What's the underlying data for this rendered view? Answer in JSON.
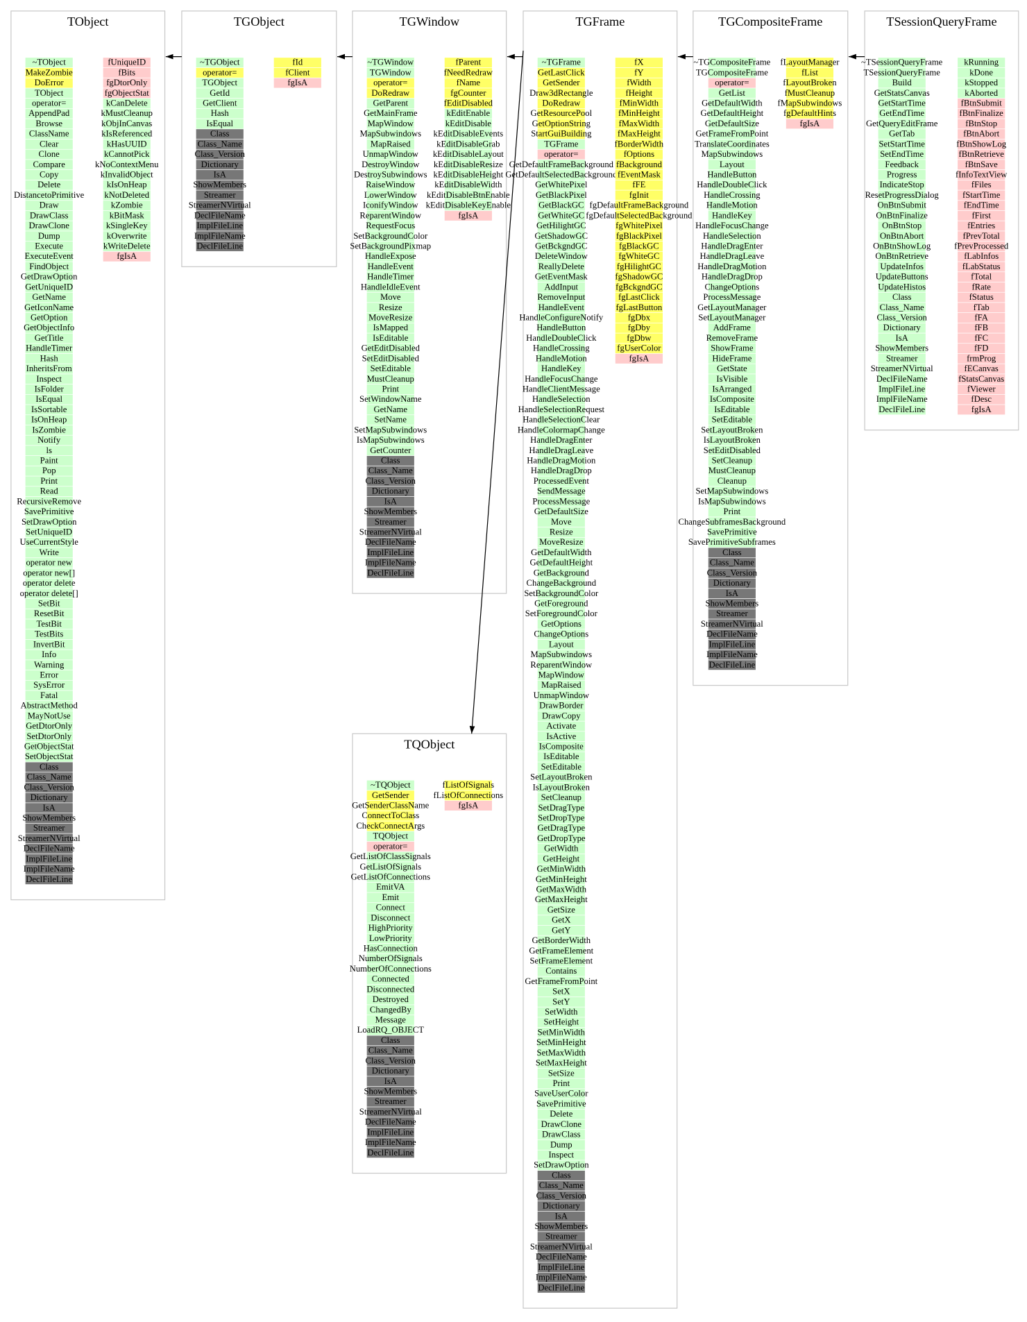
{
  "nodes": [
    {
      "title": "TObject",
      "methods": [
        {
          "color": "#ccffcc",
          "items": [
            "~TObject"
          ]
        },
        {
          "color": "#ffff66",
          "items": [
            "MakeZombie",
            "DoError"
          ]
        },
        {
          "color": "#ccffcc",
          "items": [
            "TObject",
            "operator=",
            "AppendPad",
            "Browse",
            "ClassName",
            "Clear",
            "Clone",
            "Compare",
            "Copy",
            "Delete",
            "DistancetoPrimitive",
            "Draw",
            "DrawClass",
            "DrawClone",
            "Dump",
            "Execute",
            "ExecuteEvent",
            "FindObject",
            "GetDrawOption",
            "GetUniqueID",
            "GetName",
            "GetIconName",
            "GetOption",
            "GetObjectInfo",
            "GetTitle",
            "HandleTimer",
            "Hash",
            "InheritsFrom",
            "Inspect",
            "IsFolder",
            "IsEqual",
            "IsSortable",
            "IsOnHeap",
            "IsZombie",
            "Notify",
            "ls",
            "Paint",
            "Pop",
            "Print",
            "Read",
            "RecursiveRemove",
            "SavePrimitive",
            "SetDrawOption",
            "SetUniqueID",
            "UseCurrentStyle",
            "Write",
            "operator new",
            "operator new[]",
            "operator delete",
            "operator delete[]",
            "SetBit",
            "ResetBit",
            "TestBit",
            "TestBits",
            "InvertBit",
            "Info",
            "Warning",
            "Error",
            "SysError",
            "Fatal",
            "AbstractMethod",
            "MayNotUse",
            "GetDtorOnly",
            "SetDtorOnly",
            "GetObjectStat",
            "SetObjectStat"
          ]
        },
        {
          "color": "#777777",
          "items": [
            "Class",
            "Class_Name",
            "Class_Version",
            "Dictionary",
            "IsA",
            "ShowMembers",
            "Streamer",
            "StreamerNVirtual",
            "DeclFileName",
            "ImplFileLine",
            "ImplFileName",
            "DeclFileLine"
          ]
        }
      ],
      "members": [
        {
          "color": "#ffcccc",
          "items": [
            "fUniqueID",
            "fBits",
            "fgDtorOnly",
            "fgObjectStat"
          ]
        },
        {
          "color": "#ccffcc",
          "items": [
            "kCanDelete",
            "kMustCleanup",
            "kObjInCanvas",
            "kIsReferenced",
            "kHasUUID",
            "kCannotPick",
            "kNoContextMenu",
            "kInvalidObject",
            "kIsOnHeap",
            "kNotDeleted",
            "kZombie",
            "kBitMask",
            "kSingleKey",
            "kOverwrite",
            "kWriteDelete"
          ]
        },
        {
          "color": "#ffcccc",
          "items": [
            "fgIsA"
          ]
        }
      ]
    },
    {
      "title": "TGObject",
      "methods": [
        {
          "color": "#ccffcc",
          "items": [
            "~TGObject"
          ]
        },
        {
          "color": "#ffff66",
          "items": [
            "operator="
          ]
        },
        {
          "color": "#ccffcc",
          "items": [
            "TGObject",
            "GetId",
            "GetClient",
            "Hash",
            "IsEqual"
          ]
        },
        {
          "color": "#777777",
          "items": [
            "Class",
            "Class_Name",
            "Class_Version",
            "Dictionary",
            "IsA",
            "ShowMembers",
            "Streamer",
            "StreamerNVirtual",
            "DeclFileName",
            "ImplFileLine",
            "ImplFileName",
            "DeclFileLine"
          ]
        }
      ],
      "members": [
        {
          "color": "#ffff66",
          "items": [
            "fId",
            "fClient"
          ]
        },
        {
          "color": "#ffcccc",
          "items": [
            "fgIsA"
          ]
        }
      ]
    },
    {
      "title": "TGWindow",
      "methods": [
        {
          "color": "#ccffcc",
          "items": [
            "~TGWindow",
            "TGWindow"
          ]
        },
        {
          "color": "#ffff66",
          "items": [
            "operator=",
            "DoRedraw"
          ]
        },
        {
          "color": "#ccffcc",
          "items": [
            "GetParent",
            "GetMainFrame",
            "MapWindow",
            "MapSubwindows",
            "MapRaised",
            "UnmapWindow",
            "DestroyWindow",
            "DestroySubwindows",
            "RaiseWindow",
            "LowerWindow",
            "IconifyWindow",
            "ReparentWindow",
            "RequestFocus",
            "SetBackgroundColor",
            "SetBackgroundPixmap",
            "HandleExpose",
            "HandleEvent",
            "HandleTimer",
            "HandleIdleEvent",
            "Move",
            "Resize",
            "MoveResize",
            "IsMapped",
            "IsEditable",
            "GetEditDisabled",
            "SetEditDisabled",
            "SetEditable",
            "MustCleanup",
            "Print",
            "SetWindowName",
            "GetName",
            "SetName",
            "SetMapSubwindows",
            "IsMapSubwindows",
            "GetCounter"
          ]
        },
        {
          "color": "#777777",
          "items": [
            "Class",
            "Class_Name",
            "Class_Version",
            "Dictionary",
            "IsA",
            "ShowMembers",
            "Streamer",
            "StreamerNVirtual",
            "DeclFileName",
            "ImplFileLine",
            "ImplFileName",
            "DeclFileLine"
          ]
        }
      ],
      "members": [
        {
          "color": "#ffff66",
          "items": [
            "fParent",
            "fNeedRedraw",
            "fName",
            "fgCounter",
            "fEditDisabled"
          ]
        },
        {
          "color": "#ccffcc",
          "items": [
            "kEditEnable",
            "kEditDisable",
            "kEditDisableEvents",
            "kEditDisableGrab",
            "kEditDisableLayout",
            "kEditDisableResize",
            "kEditDisableHeight",
            "kEditDisableWidth",
            "kEditDisableBtnEnable",
            "kEditDisableKeyEnable"
          ]
        },
        {
          "color": "#ffcccc",
          "items": [
            "fgIsA"
          ]
        }
      ]
    },
    {
      "title": "TGFrame",
      "methods": [
        {
          "color": "#ccffcc",
          "items": [
            "~TGFrame"
          ]
        },
        {
          "color": "#ffff66",
          "items": [
            "GetLastClick",
            "GetSender",
            "Draw3dRectangle",
            "DoRedraw",
            "GetResourcePool",
            "GetOptionString",
            "StartGuiBuilding"
          ]
        },
        {
          "color": "#ccffcc",
          "items": [
            "TGFrame"
          ]
        },
        {
          "color": "#ffcccc",
          "items": [
            "operator="
          ]
        },
        {
          "color": "#ccffcc",
          "items": [
            "GetDefaultFrameBackground",
            "GetDefaultSelectedBackground",
            "GetWhitePixel",
            "GetBlackPixel",
            "GetBlackGC",
            "GetWhiteGC",
            "GetHilightGC",
            "GetShadowGC",
            "GetBckgndGC",
            "DeleteWindow",
            "ReallyDelete",
            "GetEventMask",
            "AddInput",
            "RemoveInput",
            "HandleEvent",
            "HandleConfigureNotify",
            "HandleButton",
            "HandleDoubleClick",
            "HandleCrossing",
            "HandleMotion",
            "HandleKey",
            "HandleFocusChange",
            "HandleClientMessage",
            "HandleSelection",
            "HandleSelectionRequest",
            "HandleSelectionClear",
            "HandleColormapChange",
            "HandleDragEnter",
            "HandleDragLeave",
            "HandleDragMotion",
            "HandleDragDrop",
            "ProcessedEvent",
            "SendMessage",
            "ProcessMessage",
            "GetDefaultSize",
            "Move",
            "Resize",
            "MoveResize",
            "GetDefaultWidth",
            "GetDefaultHeight",
            "GetBackground",
            "ChangeBackground",
            "SetBackgroundColor",
            "GetForeground",
            "SetForegroundColor",
            "GetOptions",
            "ChangeOptions",
            "Layout",
            "MapSubwindows",
            "ReparentWindow",
            "MapWindow",
            "MapRaised",
            "UnmapWindow",
            "DrawBorder",
            "DrawCopy",
            "Activate",
            "IsActive",
            "IsComposite",
            "IsEditable",
            "SetEditable",
            "SetLayoutBroken",
            "IsLayoutBroken",
            "SetCleanup",
            "SetDragType",
            "SetDropType",
            "GetDragType",
            "GetDropType",
            "GetWidth",
            "GetHeight",
            "GetMinWidth",
            "GetMinHeight",
            "GetMaxWidth",
            "GetMaxHeight",
            "GetSize",
            "GetX",
            "GetY",
            "GetBorderWidth",
            "GetFrameElement",
            "SetFrameElement",
            "Contains",
            "GetFrameFromPoint",
            "SetX",
            "SetY",
            "SetWidth",
            "SetHeight",
            "SetMinWidth",
            "SetMinHeight",
            "SetMaxWidth",
            "SetMaxHeight",
            "SetSize",
            "Print",
            "SaveUserColor",
            "SavePrimitive",
            "Delete",
            "DrawClone",
            "DrawClass",
            "Dump",
            "Inspect",
            "SetDrawOption"
          ]
        },
        {
          "color": "#777777",
          "items": [
            "Class",
            "Class_Name",
            "Class_Version",
            "Dictionary",
            "IsA",
            "ShowMembers",
            "Streamer",
            "StreamerNVirtual",
            "DeclFileName",
            "ImplFileLine",
            "ImplFileName",
            "DeclFileLine"
          ]
        }
      ],
      "members": [
        {
          "color": "#ffff66",
          "items": [
            "fX",
            "fY",
            "fWidth",
            "fHeight",
            "fMinWidth",
            "fMinHeight",
            "fMaxWidth",
            "fMaxHeight",
            "fBorderWidth",
            "fOptions",
            "fBackground",
            "fEventMask",
            "fFE",
            "fgInit",
            "fgDefaultFrameBackground",
            "fgDefaultSelectedBackground",
            "fgWhitePixel",
            "fgBlackPixel",
            "fgBlackGC",
            "fgWhiteGC",
            "fgHilightGC",
            "fgShadowGC",
            "fgBckgndGC",
            "fgLastClick",
            "fgLastButton",
            "fgDbx",
            "fgDby",
            "fgDbw",
            "fgUserColor"
          ]
        },
        {
          "color": "#ffcccc",
          "items": [
            "fgIsA"
          ]
        }
      ]
    },
    {
      "title": "TGCompositeFrame",
      "methods": [
        {
          "color": "#ccffcc",
          "items": [
            "~TGCompositeFrame",
            "TGCompositeFrame"
          ]
        },
        {
          "color": "#ffcccc",
          "items": [
            "operator="
          ]
        },
        {
          "color": "#ccffcc",
          "items": [
            "GetList",
            "GetDefaultWidth",
            "GetDefaultHeight",
            "GetDefaultSize",
            "GetFrameFromPoint",
            "TranslateCoordinates",
            "MapSubwindows",
            "Layout",
            "HandleButton",
            "HandleDoubleClick",
            "HandleCrossing",
            "HandleMotion",
            "HandleKey",
            "HandleFocusChange",
            "HandleSelection",
            "HandleDragEnter",
            "HandleDragLeave",
            "HandleDragMotion",
            "HandleDragDrop",
            "ChangeOptions",
            "ProcessMessage",
            "GetLayoutManager",
            "SetLayoutManager",
            "AddFrame",
            "RemoveFrame",
            "ShowFrame",
            "HideFrame",
            "GetState",
            "IsVisible",
            "IsArranged",
            "IsComposite",
            "IsEditable",
            "SetEditable",
            "SetLayoutBroken",
            "IsLayoutBroken",
            "SetEditDisabled",
            "SetCleanup",
            "MustCleanup",
            "Cleanup",
            "SetMapSubwindows",
            "IsMapSubwindows",
            "Print",
            "ChangeSubframesBackground",
            "SavePrimitive",
            "SavePrimitiveSubframes"
          ]
        },
        {
          "color": "#777777",
          "items": [
            "Class",
            "Class_Name",
            "Class_Version",
            "Dictionary",
            "IsA",
            "ShowMembers",
            "Streamer",
            "StreamerNVirtual",
            "DeclFileName",
            "ImplFileLine",
            "ImplFileName",
            "DeclFileLine"
          ]
        }
      ],
      "members": [
        {
          "color": "#ffff66",
          "items": [
            "fLayoutManager",
            "fList",
            "fLayoutBroken",
            "fMustCleanup",
            "fMapSubwindows",
            "fgDefaultHints"
          ]
        },
        {
          "color": "#ffcccc",
          "items": [
            "fgIsA"
          ]
        }
      ]
    },
    {
      "title": "TSessionQueryFrame",
      "methods": [
        {
          "color": "#ccffcc",
          "items": [
            "~TSessionQueryFrame",
            "TSessionQueryFrame",
            "Build",
            "GetStatsCanvas",
            "GetStartTime",
            "GetEndTime",
            "GetQueryEditFrame",
            "GetTab",
            "SetStartTime",
            "SetEndTime",
            "Feedback",
            "Progress",
            "IndicateStop",
            "ResetProgressDialog",
            "OnBtnSubmit",
            "OnBtnFinalize",
            "OnBtnStop",
            "OnBtnAbort",
            "OnBtnShowLog",
            "OnBtnRetrieve",
            "UpdateInfos",
            "UpdateButtons",
            "UpdateHistos",
            "Class",
            "Class_Name",
            "Class_Version",
            "Dictionary",
            "IsA",
            "ShowMembers",
            "Streamer",
            "StreamerNVirtual",
            "DeclFileName",
            "ImplFileLine",
            "ImplFileName",
            "DeclFileLine"
          ]
        }
      ],
      "members": [
        {
          "color": "#ccffcc",
          "items": [
            "kRunning",
            "kDone",
            "kStopped",
            "kAborted"
          ]
        },
        {
          "color": "#ffcccc",
          "items": [
            "fBtnSubmit",
            "fBtnFinalize",
            "fBtnStop",
            "fBtnAbort",
            "fBtnShowLog",
            "fBtnRetrieve",
            "fBtnSave",
            "fInfoTextView",
            "fFiles",
            "fStartTime",
            "fEndTime",
            "fFirst",
            "fEntries",
            "fPrevTotal",
            "fPrevProcessed",
            "fLabInfos",
            "fLabStatus",
            "fTotal",
            "fRate",
            "fStatus",
            "fTab",
            "fFA",
            "fFB",
            "fFC",
            "fFD",
            "frmProg",
            "fECanvas",
            "fStatsCanvas",
            "fViewer",
            "fDesc",
            "fgIsA"
          ]
        }
      ]
    },
    {
      "title": "TQObject",
      "methods": [
        {
          "color": "#ccffcc",
          "items": [
            "~TQObject"
          ]
        },
        {
          "color": "#ffff66",
          "items": [
            "GetSender",
            "GetSenderClassName",
            "ConnectToClass",
            "CheckConnectArgs"
          ]
        },
        {
          "color": "#ccffcc",
          "items": [
            "TQObject"
          ]
        },
        {
          "color": "#ffcccc",
          "items": [
            "operator="
          ]
        },
        {
          "color": "#ccffcc",
          "items": [
            "GetListOfClassSignals",
            "GetListOfSignals",
            "GetListOfConnections",
            "EmitVA",
            "Emit",
            "Connect",
            "Disconnect",
            "HighPriority",
            "LowPriority",
            "HasConnection",
            "NumberOfSignals",
            "NumberOfConnections",
            "Connected",
            "Disconnected",
            "Destroyed",
            "ChangedBy",
            "Message",
            "LoadRQ_OBJECT"
          ]
        },
        {
          "color": "#777777",
          "items": [
            "Class",
            "Class_Name",
            "Class_Version",
            "Dictionary",
            "IsA",
            "ShowMembers",
            "Streamer",
            "StreamerNVirtual",
            "DeclFileName",
            "ImplFileLine",
            "ImplFileName",
            "DeclFileLine"
          ]
        }
      ],
      "members": [
        {
          "color": "#ffff66",
          "items": [
            "fListOfSignals",
            "fListOfConnections"
          ]
        },
        {
          "color": "#ffcccc",
          "items": [
            "fgIsA"
          ]
        }
      ]
    }
  ]
}
